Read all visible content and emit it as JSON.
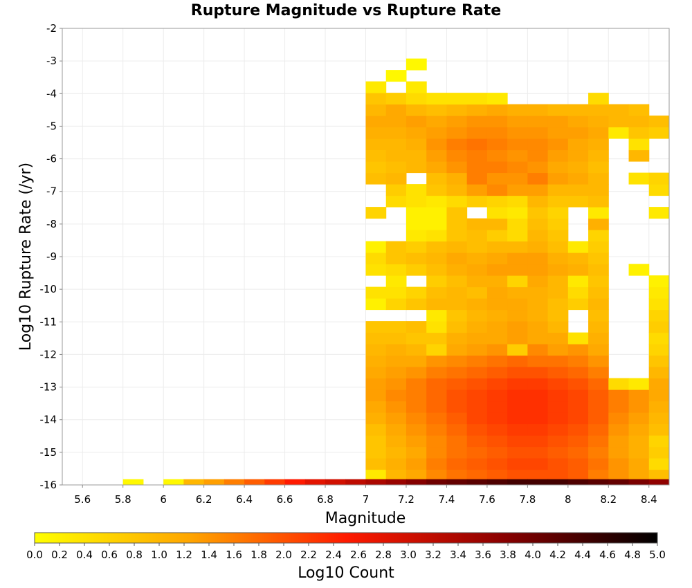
{
  "chart_data": {
    "type": "heatmap",
    "title": "Rupture Magnitude vs Rupture Rate",
    "xlabel": "Magnitude",
    "ylabel": "Log10 Rupture Rate (/yr)",
    "colorbar_label": "Log10 Count",
    "xlim": [
      5.5,
      8.5
    ],
    "ylim": [
      -16,
      -2
    ],
    "x_bin_width": 0.1,
    "y_bin_width": 0.35,
    "x_ticks": [
      "5.6",
      "5.8",
      "6",
      "6.2",
      "6.4",
      "6.6",
      "6.8",
      "7",
      "7.2",
      "7.4",
      "7.6",
      "7.8",
      "8",
      "8.2",
      "8.4"
    ],
    "y_ticks": [
      "-2",
      "-3",
      "-4",
      "-5",
      "-6",
      "-7",
      "-8",
      "-9",
      "-10",
      "-11",
      "-12",
      "-13",
      "-14",
      "-15",
      "-16"
    ],
    "color_range": [
      0,
      5
    ],
    "colorbar_ticks": [
      "0.0",
      "0.2",
      "0.4",
      "0.6",
      "0.8",
      "1.0",
      "1.2",
      "1.4",
      "1.6",
      "1.8",
      "2.0",
      "2.2",
      "2.4",
      "2.6",
      "2.8",
      "3.0",
      "3.2",
      "3.4",
      "3.6",
      "3.8",
      "4.0",
      "4.2",
      "4.4",
      "4.6",
      "4.8",
      "5.0"
    ],
    "colormap": [
      "#ffff00",
      "#ffa500",
      "#ff1a00",
      "#8b0000",
      "#000000"
    ],
    "grid": true,
    "colorbar_placement": "bottom",
    "bottom_row": {
      "y": -16,
      "cells": [
        {
          "x": 5.8,
          "v": 0.1
        },
        {
          "x": 6.0,
          "v": 0.1
        },
        {
          "x": 6.1,
          "v": 1.0
        },
        {
          "x": 6.2,
          "v": 1.3
        },
        {
          "x": 6.3,
          "v": 1.6
        },
        {
          "x": 6.4,
          "v": 1.9
        },
        {
          "x": 6.5,
          "v": 2.2
        },
        {
          "x": 6.6,
          "v": 2.5
        },
        {
          "x": 6.7,
          "v": 2.8
        },
        {
          "x": 6.8,
          "v": 3.0
        },
        {
          "x": 6.9,
          "v": 3.2
        },
        {
          "x": 7.0,
          "v": 3.4
        },
        {
          "x": 7.1,
          "v": 3.6
        },
        {
          "x": 7.2,
          "v": 3.8
        },
        {
          "x": 7.3,
          "v": 4.0
        },
        {
          "x": 7.4,
          "v": 4.1
        },
        {
          "x": 7.5,
          "v": 4.2
        },
        {
          "x": 7.6,
          "v": 4.3
        },
        {
          "x": 7.7,
          "v": 4.4
        },
        {
          "x": 7.8,
          "v": 4.4
        },
        {
          "x": 7.9,
          "v": 4.4
        },
        {
          "x": 8.0,
          "v": 4.3
        },
        {
          "x": 8.1,
          "v": 4.2
        },
        {
          "x": 8.2,
          "v": 4.1
        },
        {
          "x": 8.3,
          "v": 3.9
        },
        {
          "x": 8.4,
          "v": 3.7
        }
      ]
    },
    "main_block": {
      "x_start": 7.0,
      "y_first_row": -15.7,
      "rows": [
        [
          0.3,
          1.0,
          1.2,
          1.5,
          1.7,
          1.8,
          1.9,
          2.0,
          2.0,
          2.0,
          1.9,
          1.6,
          1.4,
          1.2,
          0.9
        ],
        [
          0.9,
          1.1,
          1.3,
          1.6,
          1.8,
          1.9,
          2.0,
          2.1,
          2.1,
          2.0,
          1.9,
          1.7,
          1.4,
          1.2,
          0.5
        ],
        [
          0.8,
          1.0,
          1.2,
          1.5,
          1.7,
          1.8,
          1.9,
          2.0,
          2.0,
          1.9,
          1.8,
          1.6,
          1.3,
          1.1,
          0.7
        ],
        [
          0.8,
          1.1,
          1.3,
          1.5,
          1.7,
          1.9,
          2.0,
          2.1,
          2.1,
          2.0,
          1.9,
          1.7,
          1.3,
          1.1,
          0.6
        ],
        [
          0.9,
          1.2,
          1.4,
          1.6,
          1.8,
          2.0,
          2.1,
          2.2,
          2.2,
          2.1,
          2.0,
          1.8,
          1.4,
          1.2,
          0.9
        ],
        [
          1.1,
          1.3,
          1.5,
          1.7,
          1.9,
          2.1,
          2.2,
          2.3,
          2.3,
          2.2,
          2.1,
          1.9,
          1.5,
          1.3,
          1.0
        ],
        [
          1.2,
          1.4,
          1.6,
          1.8,
          2.0,
          2.1,
          2.2,
          2.3,
          2.3,
          2.2,
          2.1,
          1.9,
          1.6,
          1.4,
          1.1
        ],
        [
          1.3,
          1.5,
          1.6,
          1.8,
          2.0,
          2.1,
          2.2,
          2.3,
          2.3,
          2.2,
          2.1,
          1.9,
          1.6,
          1.4,
          1.2
        ],
        [
          1.3,
          1.4,
          1.6,
          1.8,
          1.9,
          2.0,
          2.1,
          2.2,
          2.2,
          2.1,
          2.0,
          1.8,
          0.5,
          0.3,
          1.2
        ],
        [
          1.2,
          1.3,
          1.4,
          1.6,
          1.7,
          1.8,
          1.9,
          2.0,
          2.0,
          1.9,
          1.8,
          1.6,
          null,
          null,
          1.0
        ],
        [
          1.1,
          1.2,
          1.2,
          1.4,
          1.5,
          1.6,
          1.7,
          1.8,
          1.7,
          1.7,
          1.6,
          1.4,
          null,
          null,
          0.8
        ],
        [
          1.0,
          1.1,
          1.0,
          0.6,
          1.2,
          1.3,
          1.4,
          0.7,
          1.5,
          1.3,
          1.4,
          1.2,
          null,
          null,
          0.6
        ],
        [
          0.9,
          0.9,
          0.8,
          0.8,
          1.1,
          1.2,
          1.2,
          1.3,
          1.2,
          1.2,
          0.4,
          1.1,
          null,
          null,
          0.5
        ],
        [
          0.8,
          0.8,
          0.9,
          0.4,
          0.9,
          1.1,
          1.2,
          1.3,
          1.2,
          1.0,
          null,
          1.0,
          null,
          null,
          0.7
        ],
        [
          null,
          null,
          null,
          0.3,
          0.8,
          1.0,
          1.1,
          1.2,
          1.1,
          0.9,
          null,
          0.9,
          null,
          null,
          0.6
        ],
        [
          0.2,
          0.6,
          0.8,
          1.0,
          1.0,
          1.1,
          1.2,
          1.2,
          1.1,
          0.9,
          0.7,
          1.0,
          null,
          null,
          0.4
        ],
        [
          0.4,
          0.4,
          0.6,
          0.9,
          1.0,
          0.9,
          1.2,
          1.1,
          1.1,
          1.0,
          0.5,
          0.9,
          null,
          null,
          0.3
        ],
        [
          null,
          0.3,
          null,
          0.7,
          0.9,
          1.1,
          1.1,
          0.6,
          1.2,
          1.0,
          0.3,
          0.8,
          null,
          null,
          0.2
        ],
        [
          0.4,
          0.5,
          0.7,
          0.9,
          1.1,
          1.2,
          1.3,
          1.3,
          1.3,
          1.2,
          1.1,
          0.9,
          null,
          0.2,
          null
        ],
        [
          0.5,
          0.8,
          0.9,
          1.0,
          1.2,
          1.1,
          1.2,
          1.3,
          1.3,
          1.1,
          1.0,
          0.8,
          null,
          null,
          null
        ],
        [
          0.2,
          0.8,
          0.7,
          0.9,
          1.0,
          0.9,
          1.0,
          1.0,
          1.1,
          0.9,
          0.3,
          0.7,
          null,
          null,
          null
        ],
        [
          null,
          null,
          0.3,
          0.4,
          0.8,
          0.9,
          0.7,
          0.5,
          1.0,
          0.8,
          null,
          0.6,
          null,
          null,
          null
        ],
        [
          null,
          null,
          0.2,
          0.2,
          0.8,
          1.0,
          1.0,
          0.5,
          0.9,
          0.7,
          null,
          1.1,
          null,
          null,
          null
        ],
        [
          0.6,
          null,
          0.2,
          0.2,
          0.8,
          null,
          0.4,
          0.3,
          0.8,
          0.6,
          null,
          0.3,
          null,
          null,
          0.3
        ],
        [
          null,
          0.5,
          0.4,
          0.3,
          0.5,
          0.7,
          0.6,
          0.5,
          1.0,
          0.8,
          0.8,
          0.9,
          null,
          null,
          null
        ],
        [
          null,
          0.7,
          0.4,
          0.8,
          1.0,
          1.3,
          1.5,
          1.3,
          1.3,
          1.0,
          1.0,
          1.0,
          null,
          null,
          0.5
        ],
        [
          0.9,
          1.0,
          null,
          0.9,
          1.1,
          1.6,
          1.4,
          1.4,
          1.6,
          1.3,
          1.2,
          1.0,
          null,
          0.4,
          0.6
        ],
        [
          0.8,
          0.9,
          1.0,
          1.2,
          1.4,
          1.6,
          1.6,
          1.5,
          1.4,
          1.2,
          1.1,
          0.9,
          null,
          null,
          null
        ],
        [
          0.9,
          1.0,
          1.0,
          1.3,
          1.5,
          1.6,
          1.5,
          1.4,
          1.5,
          1.3,
          1.2,
          1.0,
          null,
          1.0,
          null
        ],
        [
          1.0,
          1.0,
          1.1,
          1.4,
          1.6,
          1.7,
          1.6,
          1.5,
          1.5,
          1.4,
          1.2,
          1.1,
          null,
          0.4,
          null
        ],
        [
          1.1,
          1.1,
          1.2,
          1.3,
          1.4,
          1.5,
          1.5,
          1.4,
          1.4,
          1.3,
          1.3,
          1.2,
          0.3,
          0.8,
          0.7
        ],
        [
          1.2,
          1.2,
          1.3,
          1.2,
          1.3,
          1.4,
          1.4,
          1.3,
          1.3,
          1.3,
          1.2,
          1.1,
          1.0,
          1.0,
          0.9
        ],
        [
          1.0,
          1.2,
          1.0,
          0.9,
          1.0,
          1.1,
          1.2,
          1.1,
          1.1,
          1.0,
          1.0,
          1.0,
          1.0,
          0.9,
          null
        ],
        [
          0.8,
          0.7,
          0.5,
          0.4,
          0.4,
          0.4,
          0.3,
          null,
          null,
          null,
          null,
          0.5,
          null,
          null,
          null
        ],
        [
          0.3,
          null,
          0.3,
          null,
          null,
          null,
          null,
          null,
          null,
          null,
          null,
          null,
          null,
          null,
          null
        ],
        [
          null,
          0.1,
          null,
          null,
          null,
          null,
          null,
          null,
          null,
          null,
          null,
          null,
          null,
          null,
          null
        ],
        [
          null,
          null,
          0.1,
          null,
          null,
          null,
          null,
          null,
          null,
          null,
          null,
          null,
          null,
          null,
          null
        ]
      ]
    }
  }
}
